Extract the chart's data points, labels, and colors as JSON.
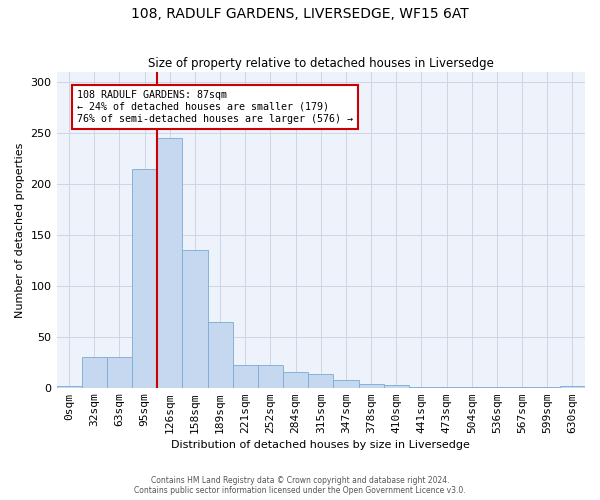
{
  "title": "108, RADULF GARDENS, LIVERSEDGE, WF15 6AT",
  "subtitle": "Size of property relative to detached houses in Liversedge",
  "xlabel": "Distribution of detached houses by size in Liversedge",
  "ylabel": "Number of detached properties",
  "bar_color": "#c5d8f0",
  "bar_edge_color": "#7aabd4",
  "background_color": "#eef2fb",
  "fig_color": "#ffffff",
  "categories": [
    "0sqm",
    "32sqm",
    "63sqm",
    "95sqm",
    "126sqm",
    "158sqm",
    "189sqm",
    "221sqm",
    "252sqm",
    "284sqm",
    "315sqm",
    "347sqm",
    "378sqm",
    "410sqm",
    "441sqm",
    "473sqm",
    "504sqm",
    "536sqm",
    "567sqm",
    "599sqm",
    "630sqm"
  ],
  "values": [
    2,
    30,
    30,
    215,
    245,
    135,
    65,
    22,
    22,
    15,
    13,
    8,
    4,
    3,
    1,
    1,
    1,
    1,
    1,
    1,
    2
  ],
  "ylim": [
    0,
    310
  ],
  "yticks": [
    0,
    50,
    100,
    150,
    200,
    250,
    300
  ],
  "property_line_x": 3.5,
  "annotation_text": "108 RADULF GARDENS: 87sqm\n← 24% of detached houses are smaller (179)\n76% of semi-detached houses are larger (576) →",
  "annotation_box_color": "#ffffff",
  "annotation_box_edge": "#cc0000",
  "property_line_color": "#cc0000",
  "footer1": "Contains HM Land Registry data © Crown copyright and database right 2024.",
  "footer2": "Contains public sector information licensed under the Open Government Licence v3.0."
}
